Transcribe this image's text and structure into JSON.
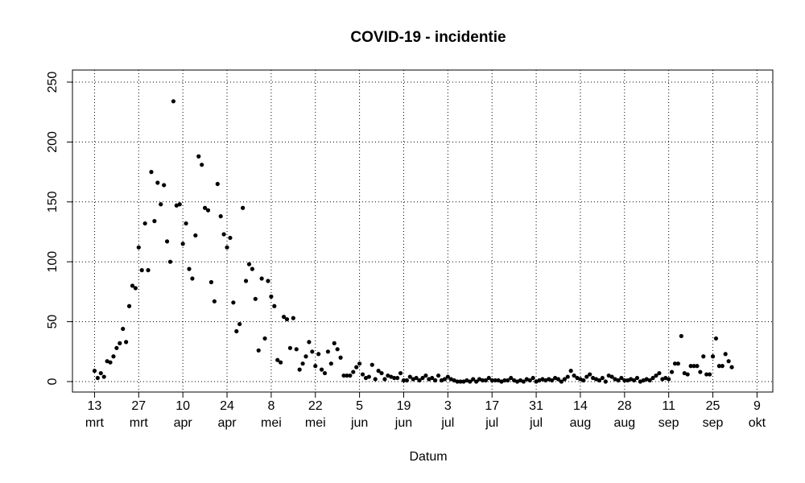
{
  "chart_data": {
    "type": "scatter",
    "title": "COVID-19 - incidentie",
    "xlabel": "Datum",
    "ylabel": "",
    "ylim": [
      0,
      250
    ],
    "yticks": [
      0,
      50,
      100,
      150,
      200,
      250
    ],
    "grid": true,
    "legend": "none",
    "x_start": "2020-03-13",
    "xlim": [
      "2020-03-06",
      "2020-10-14"
    ],
    "xticks": [
      {
        "date": "2020-03-13",
        "day": "13",
        "month": "mrt"
      },
      {
        "date": "2020-03-27",
        "day": "27",
        "month": "mrt"
      },
      {
        "date": "2020-04-10",
        "day": "10",
        "month": "apr"
      },
      {
        "date": "2020-04-24",
        "day": "24",
        "month": "apr"
      },
      {
        "date": "2020-05-08",
        "day": "8",
        "month": "mei"
      },
      {
        "date": "2020-05-22",
        "day": "22",
        "month": "mei"
      },
      {
        "date": "2020-06-05",
        "day": "5",
        "month": "jun"
      },
      {
        "date": "2020-06-19",
        "day": "19",
        "month": "jun"
      },
      {
        "date": "2020-07-03",
        "day": "3",
        "month": "jul"
      },
      {
        "date": "2020-07-17",
        "day": "17",
        "month": "jul"
      },
      {
        "date": "2020-07-31",
        "day": "31",
        "month": "jul"
      },
      {
        "date": "2020-08-14",
        "day": "14",
        "month": "aug"
      },
      {
        "date": "2020-08-28",
        "day": "28",
        "month": "aug"
      },
      {
        "date": "2020-09-11",
        "day": "11",
        "month": "sep"
      },
      {
        "date": "2020-09-25",
        "day": "25",
        "month": "sep"
      },
      {
        "date": "2020-10-09",
        "day": "9",
        "month": "okt"
      }
    ],
    "values": [
      9,
      3,
      7,
      4,
      17,
      16,
      21,
      28,
      32,
      44,
      33,
      63,
      80,
      78,
      112,
      93,
      132,
      93,
      175,
      134,
      166,
      148,
      164,
      117,
      100,
      234,
      147,
      148,
      115,
      132,
      94,
      86,
      122,
      188,
      181,
      145,
      143,
      83,
      67,
      165,
      138,
      123,
      112,
      120,
      66,
      42,
      48,
      145,
      84,
      98,
      94,
      69,
      26,
      86,
      36,
      84,
      71,
      63,
      18,
      16,
      54,
      52,
      28,
      53,
      27,
      10,
      15,
      21,
      33,
      25,
      13,
      23,
      10,
      7,
      25,
      15,
      32,
      27,
      20,
      5,
      5,
      5,
      8,
      12,
      15,
      6,
      3,
      4,
      14,
      2,
      9,
      7,
      2,
      5,
      4,
      3,
      3,
      7,
      1,
      1,
      4,
      2,
      3,
      1,
      3,
      5,
      2,
      3,
      1,
      5,
      1,
      2,
      4,
      2,
      1,
      0,
      0,
      0,
      1,
      0,
      2,
      0,
      2,
      1,
      1,
      3,
      1,
      1,
      1,
      0,
      1,
      1,
      3,
      1,
      0,
      1,
      0,
      2,
      1,
      3,
      0,
      1,
      2,
      1,
      2,
      1,
      3,
      2,
      0,
      2,
      4,
      9,
      5,
      3,
      2,
      1,
      4,
      6,
      3,
      2,
      1,
      3,
      0,
      5,
      4,
      2,
      1,
      3,
      1,
      1,
      2,
      1,
      3,
      0,
      1,
      2,
      1,
      3,
      5,
      7,
      2,
      3,
      2,
      8,
      15,
      15,
      38,
      7,
      6,
      13,
      13,
      13,
      8,
      21,
      6,
      6,
      21,
      36,
      13,
      13,
      23,
      17,
      12
    ]
  }
}
